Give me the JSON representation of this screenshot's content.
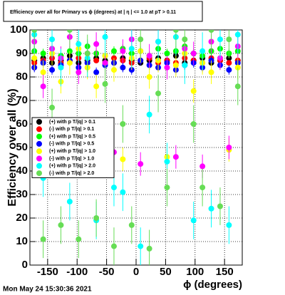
{
  "chart_data": {
    "type": "scatter",
    "title": "Efficiency over all for Primary vs ϕ (degrees) at | η | <= 1.0 at pT > 0.11",
    "x_label": "ϕ (degrees)",
    "y_label": "Efficiency over all (%)",
    "timestamp": "Mon May 24 15:30:36 2021",
    "xlim": [
      -180,
      180
    ],
    "xticks": [
      -150,
      -100,
      -50,
      0,
      50,
      100,
      150
    ],
    "ylim": [
      0,
      100
    ],
    "yticks": [
      0,
      10,
      20,
      30,
      40,
      50,
      60,
      70,
      80,
      90,
      100
    ],
    "grid": true,
    "x": [
      -172.5,
      -157.5,
      -142.5,
      -127.5,
      -112.5,
      -97.5,
      -82.5,
      -67.5,
      -52.5,
      -37.5,
      -22.5,
      -7.5,
      7.5,
      22.5,
      37.5,
      52.5,
      67.5,
      82.5,
      97.5,
      112.5,
      127.5,
      142.5,
      157.5,
      172.5
    ],
    "series": [
      {
        "name": "(+) with p T/|q| > 0.1",
        "color": "#000000",
        "values": [
          87,
          88,
          86,
          87,
          89,
          86,
          87,
          88,
          87,
          86,
          88,
          87,
          86,
          87,
          88,
          87,
          89,
          86,
          87,
          88,
          86,
          87,
          88,
          87
        ],
        "errors": [
          1,
          1,
          1,
          1,
          1,
          1,
          1,
          1,
          1,
          1,
          1,
          1,
          1,
          1,
          1,
          1,
          1,
          1,
          1,
          1,
          1,
          1,
          1,
          1
        ]
      },
      {
        "name": "(-) with p T/|q| > 0.1",
        "color": "#ff0000",
        "values": [
          86,
          87,
          88,
          86,
          87,
          88,
          86,
          87,
          86,
          88,
          87,
          86,
          87,
          88,
          86,
          87,
          86,
          88,
          87,
          86,
          88,
          87,
          86,
          87
        ],
        "errors": [
          1,
          1,
          1,
          1,
          1,
          1,
          1,
          1,
          1,
          1,
          1,
          1,
          1,
          1,
          1,
          1,
          1,
          1,
          1,
          1,
          1,
          1,
          1,
          1
        ]
      },
      {
        "name": "(+) with p T/|q| > 0.5",
        "color": "#00ff00",
        "values": [
          91,
          90,
          92,
          89,
          91,
          90,
          93,
          90,
          89,
          91,
          92,
          90,
          91,
          89,
          92,
          90,
          91,
          93,
          90,
          89,
          91,
          92,
          90,
          91
        ],
        "errors": [
          2,
          2,
          2,
          2,
          2,
          2,
          2,
          2,
          2,
          2,
          2,
          2,
          2,
          2,
          2,
          2,
          2,
          2,
          2,
          2,
          2,
          2,
          2,
          2
        ]
      },
      {
        "name": "(-) with p T/|q| > 0.5",
        "color": "#0000ff",
        "values": [
          84,
          86,
          83,
          85,
          87,
          84,
          86,
          82,
          85,
          86,
          84,
          83,
          87,
          85,
          84,
          86,
          83,
          85,
          86,
          84,
          87,
          85,
          83,
          86
        ],
        "errors": [
          2,
          2,
          2,
          2,
          2,
          2,
          2,
          2,
          2,
          2,
          2,
          2,
          2,
          2,
          2,
          2,
          2,
          2,
          2,
          2,
          2,
          2,
          2,
          2
        ]
      },
      {
        "name": "(+) with p T/|q| > 1.0",
        "color": "#ffff00",
        "values": [
          88,
          82,
          90,
          78,
          86,
          92,
          84,
          76,
          89,
          83,
          45,
          88,
          91,
          80,
          87,
          46,
          85,
          90,
          74,
          86,
          82,
          88,
          49,
          84
        ],
        "errors": [
          5,
          5,
          5,
          5,
          5,
          5,
          5,
          5,
          5,
          5,
          5,
          5,
          5,
          5,
          5,
          5,
          5,
          5,
          5,
          5,
          5,
          5,
          5,
          5
        ]
      },
      {
        "name": "(-) with p T/|q| > 1.0",
        "color": "#ff00ff",
        "values": [
          95,
          76,
          92,
          88,
          97,
          82,
          90,
          94,
          86,
          48,
          91,
          96,
          43,
          89,
          95,
          84,
          46,
          92,
          90,
          42,
          95,
          88,
          50,
          93
        ],
        "errors": [
          5,
          5,
          5,
          5,
          5,
          5,
          5,
          5,
          5,
          5,
          5,
          5,
          5,
          5,
          5,
          5,
          5,
          5,
          5,
          5,
          5,
          5,
          5,
          5
        ]
      },
      {
        "name": "(+) with p T/|q| > 2.0",
        "color": "#00ffff",
        "values": [
          98,
          37,
          96,
          84,
          27,
          94,
          88,
          19,
          97,
          33,
          31,
          92,
          8,
          64,
          95,
          44,
          97,
          85,
          19,
          91,
          24,
          96,
          17,
          98
        ],
        "errors": [
          8,
          8,
          8,
          8,
          8,
          8,
          8,
          8,
          8,
          8,
          8,
          8,
          8,
          8,
          8,
          8,
          8,
          8,
          8,
          8,
          8,
          8,
          8,
          8
        ]
      },
      {
        "name": "(-) with p T/|q| > 2.0",
        "color": "#66dd55",
        "values": [
          100,
          11,
          67,
          17,
          100,
          11,
          90,
          20,
          77,
          8,
          60,
          17,
          96,
          7,
          73,
          33,
          100,
          96,
          60,
          33,
          100,
          25,
          96,
          76
        ],
        "errors": [
          8,
          8,
          8,
          8,
          8,
          8,
          8,
          8,
          8,
          8,
          8,
          8,
          8,
          8,
          8,
          8,
          8,
          8,
          8,
          8,
          8,
          8,
          8,
          8
        ]
      }
    ]
  }
}
